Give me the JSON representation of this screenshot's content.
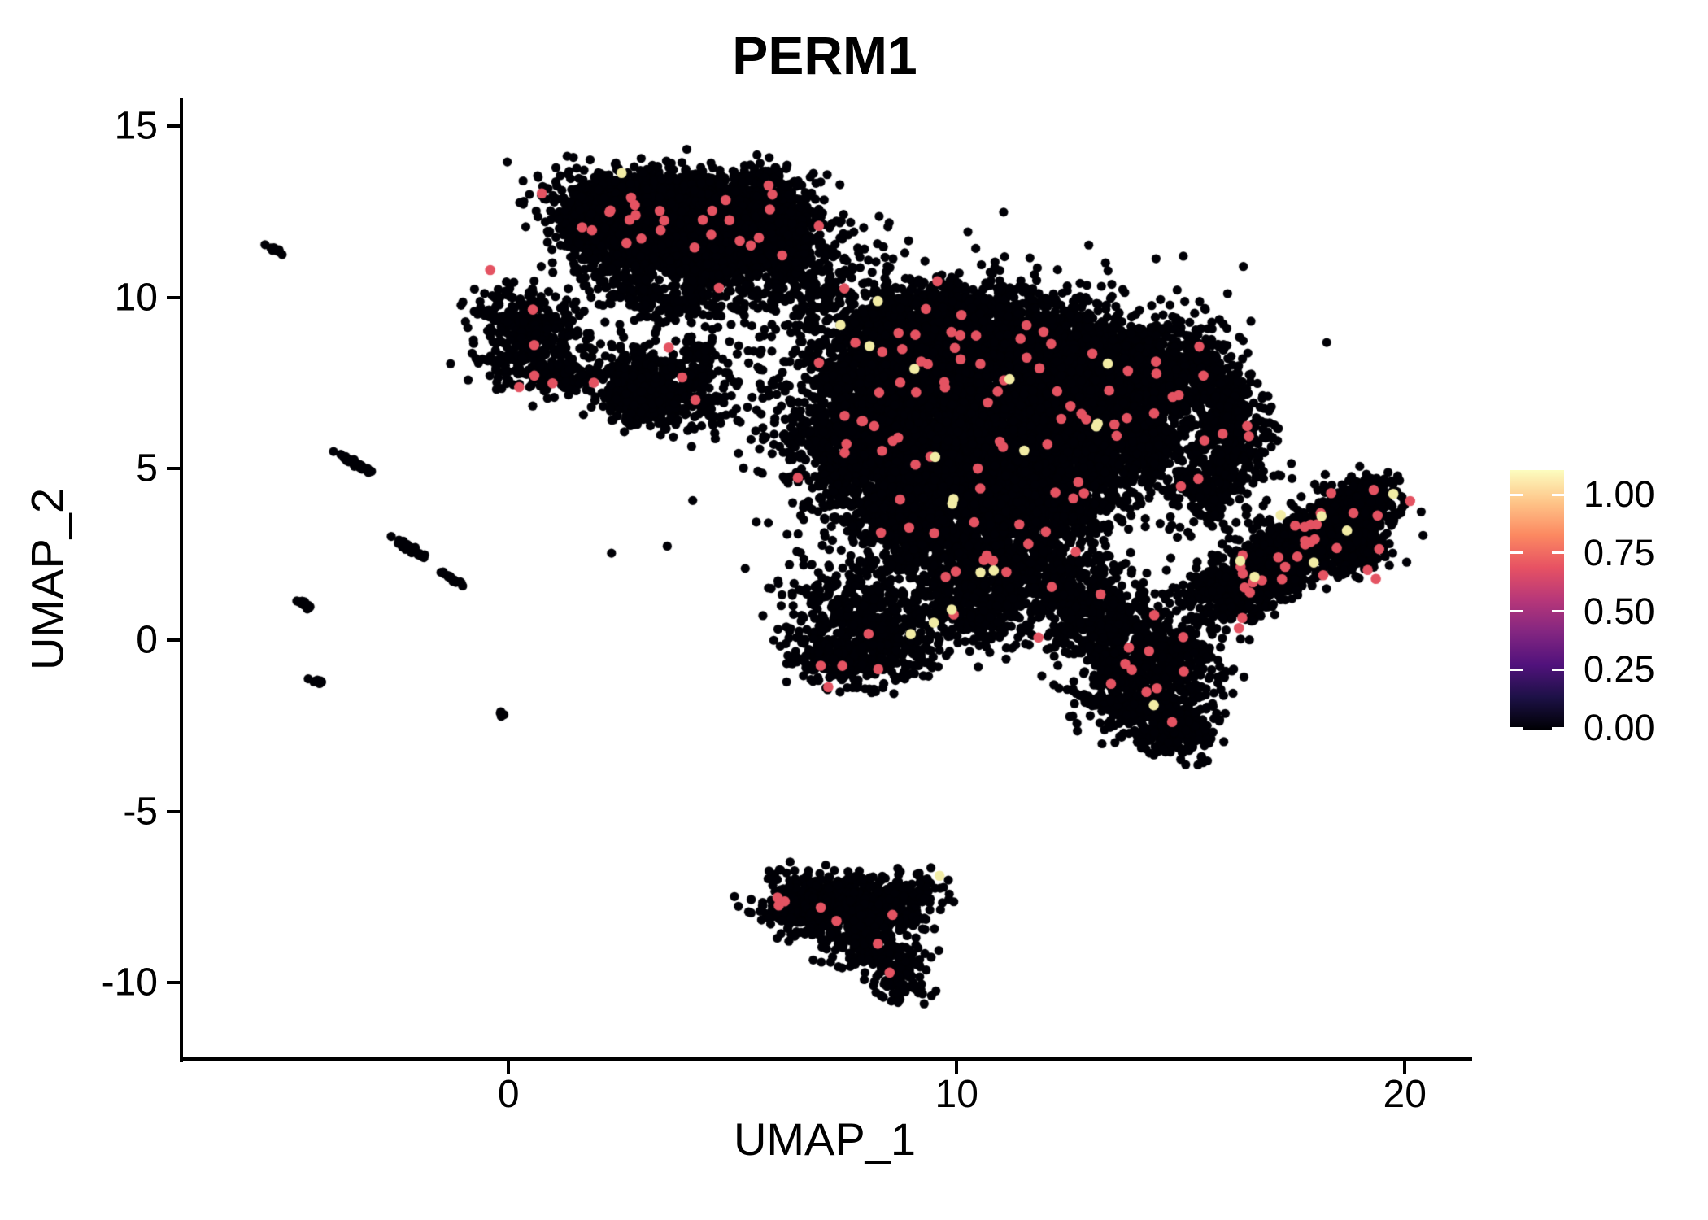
{
  "chart_data": {
    "type": "scatter",
    "title": "PERM1",
    "xlabel": "UMAP_1",
    "ylabel": "UMAP_2",
    "xlim": [
      -7.3,
      21.43
    ],
    "ylim": [
      -12.23,
      15.77
    ],
    "grid": false,
    "xticks": [
      {
        "v": 0,
        "label": "0"
      },
      {
        "v": 10,
        "label": "10"
      },
      {
        "v": 20,
        "label": "20"
      }
    ],
    "yticks": [
      {
        "v": 15,
        "label": "15"
      },
      {
        "v": 10,
        "label": "10"
      },
      {
        "v": 5,
        "label": "5"
      },
      {
        "v": 0,
        "label": "0"
      },
      {
        "v": -5,
        "label": "-5"
      },
      {
        "v": -10,
        "label": "-10"
      }
    ],
    "legend": {
      "position": "right",
      "ticks": [
        {
          "v": 1.0,
          "label": "1.00"
        },
        {
          "v": 0.75,
          "label": "0.75"
        },
        {
          "v": 0.5,
          "label": "0.50"
        },
        {
          "v": 0.25,
          "label": "0.25"
        },
        {
          "v": 0.0,
          "label": "0.00"
        }
      ],
      "gradient_bottom_to_top": [
        "#000004",
        "#1d1147",
        "#51127c",
        "#832681",
        "#b73779",
        "#e75263",
        "#fc8961",
        "#fec488",
        "#fcfdbf"
      ]
    },
    "point_colors": {
      "zero": "#000006",
      "mid_expression": "#e45362",
      "high_expression": "#f2eca5"
    },
    "point_radius": {
      "zero": 5.6,
      "expressing": 6.3
    },
    "clusters": [
      {
        "name": "top-blob",
        "frac_mid": 0.009,
        "frac_high": 0.0007,
        "blobs": [
          [
            3.0,
            12.9,
            1.0,
            0.45,
            -8,
            480
          ],
          [
            4.4,
            12.9,
            0.9,
            0.45,
            5,
            480
          ],
          [
            2.5,
            12.2,
            0.8,
            0.45,
            0,
            380
          ],
          [
            3.6,
            12.2,
            0.9,
            0.5,
            0,
            430
          ],
          [
            4.9,
            12.1,
            0.8,
            0.5,
            0,
            380
          ],
          [
            5.8,
            12.6,
            0.6,
            0.5,
            25,
            250
          ],
          [
            3.1,
            11.3,
            0.8,
            0.4,
            -5,
            250
          ],
          [
            4.5,
            11.2,
            0.7,
            0.4,
            0,
            210
          ],
          [
            5.5,
            11.3,
            0.5,
            0.4,
            15,
            150
          ],
          [
            2.0,
            12.0,
            0.45,
            0.6,
            0,
            150
          ],
          [
            2.9,
            10.3,
            0.5,
            0.5,
            -40,
            100
          ],
          [
            3.7,
            9.8,
            0.45,
            0.35,
            -20,
            65
          ],
          [
            6.3,
            11.6,
            0.4,
            0.5,
            0,
            100
          ],
          [
            6.6,
            10.3,
            0.45,
            0.6,
            0,
            75
          ],
          [
            4.3,
            10.4,
            0.5,
            0.35,
            0,
            90
          ]
        ]
      },
      {
        "name": "left-hook",
        "frac_mid": 0.022,
        "frac_high": 0.0,
        "blobs": [
          [
            0.1,
            9.5,
            0.5,
            0.45,
            20,
            130
          ],
          [
            0.9,
            9.1,
            0.45,
            0.35,
            0,
            100
          ],
          [
            0.3,
            8.1,
            0.55,
            0.45,
            0,
            130
          ],
          [
            1.2,
            7.9,
            0.4,
            0.35,
            0,
            95
          ]
        ]
      },
      {
        "name": "mid-small",
        "frac_mid": 0.005,
        "frac_high": 0.0,
        "blobs": [
          [
            2.9,
            7.7,
            0.55,
            0.45,
            -25,
            210
          ],
          [
            3.6,
            7.1,
            0.55,
            0.4,
            -25,
            210
          ],
          [
            2.7,
            6.9,
            0.4,
            0.35,
            0,
            110
          ],
          [
            4.1,
            7.9,
            0.35,
            0.35,
            0,
            65
          ],
          [
            4.3,
            8.4,
            0.2,
            0.25,
            0,
            28
          ]
        ]
      },
      {
        "name": "sparse-bridges",
        "frac_mid": 0.004,
        "frac_high": 0.0,
        "blobs": [
          [
            5.4,
            7.4,
            0.8,
            0.7,
            0,
            55
          ],
          [
            6.7,
            10.7,
            0.8,
            0.7,
            0,
            80
          ],
          [
            1.9,
            10.4,
            0.5,
            0.5,
            0,
            32
          ],
          [
            7.4,
            11.3,
            0.6,
            0.5,
            0,
            45
          ],
          [
            5.1,
            9.7,
            0.6,
            0.5,
            0,
            45
          ]
        ]
      },
      {
        "name": "main-blob",
        "frac_mid": 0.0075,
        "frac_high": 0.0009,
        "blobs": [
          [
            8.3,
            8.8,
            1.0,
            0.8,
            0,
            540
          ],
          [
            9.6,
            9.5,
            0.8,
            0.55,
            0,
            340
          ],
          [
            10.8,
            9.2,
            0.9,
            0.6,
            0,
            430
          ],
          [
            12.0,
            8.6,
            1.0,
            0.7,
            0,
            540
          ],
          [
            13.3,
            8.1,
            0.9,
            0.7,
            0,
            470
          ],
          [
            8.0,
            7.2,
            0.85,
            0.8,
            0,
            430
          ],
          [
            9.3,
            7.8,
            0.9,
            0.7,
            0,
            490
          ],
          [
            10.5,
            7.5,
            0.9,
            0.7,
            0,
            530
          ],
          [
            11.8,
            7.0,
            0.9,
            0.7,
            0,
            530
          ],
          [
            13.0,
            6.7,
            0.8,
            0.6,
            0,
            430
          ],
          [
            14.3,
            7.4,
            0.7,
            0.8,
            0,
            370
          ],
          [
            15.3,
            8.0,
            0.5,
            0.8,
            15,
            270
          ],
          [
            16.0,
            6.6,
            0.45,
            0.7,
            0,
            210
          ],
          [
            7.6,
            5.8,
            0.8,
            0.7,
            0,
            370
          ],
          [
            8.9,
            5.9,
            0.8,
            0.7,
            0,
            430
          ],
          [
            10.2,
            5.7,
            0.8,
            0.7,
            0,
            490
          ],
          [
            11.5,
            5.3,
            0.8,
            0.7,
            0,
            490
          ],
          [
            12.8,
            5.0,
            0.8,
            0.7,
            0,
            430
          ],
          [
            14.1,
            5.6,
            0.6,
            0.6,
            0,
            270
          ],
          [
            8.2,
            4.3,
            0.7,
            0.7,
            0,
            370
          ],
          [
            9.5,
            4.2,
            0.7,
            0.6,
            0,
            370
          ],
          [
            10.8,
            3.9,
            0.7,
            0.6,
            0,
            370
          ],
          [
            12.1,
            3.6,
            0.7,
            0.6,
            0,
            310
          ],
          [
            15.6,
            4.4,
            0.5,
            0.6,
            0,
            190
          ],
          [
            16.2,
            5.5,
            0.4,
            0.6,
            0,
            160
          ],
          [
            9.0,
            2.8,
            0.6,
            0.7,
            0,
            270
          ],
          [
            10.3,
            2.4,
            0.6,
            0.6,
            0,
            240
          ],
          [
            11.5,
            2.1,
            0.6,
            0.6,
            0,
            210
          ],
          [
            12.5,
            1.6,
            0.6,
            0.5,
            0,
            230
          ],
          [
            9.7,
            1.2,
            0.5,
            0.8,
            0,
            190
          ],
          [
            10.7,
            0.7,
            0.5,
            0.6,
            0,
            160
          ],
          [
            7.5,
            0.9,
            0.7,
            0.8,
            0,
            310
          ],
          [
            8.4,
            0.0,
            0.6,
            0.6,
            0,
            260
          ],
          [
            7.3,
            -0.6,
            0.5,
            0.4,
            0,
            160
          ],
          [
            13.5,
            0.4,
            0.9,
            0.7,
            -15,
            480
          ],
          [
            14.6,
            -0.6,
            0.7,
            0.6,
            0,
            370
          ],
          [
            13.9,
            -1.7,
            0.7,
            0.5,
            -20,
            310
          ],
          [
            14.8,
            -2.6,
            0.5,
            0.45,
            -35,
            200
          ],
          [
            11.0,
            6.5,
            2.8,
            2.2,
            0,
            450
          ]
        ]
      },
      {
        "name": "right-band",
        "frac_mid": 0.013,
        "frac_high": 0.0035,
        "blobs": [
          [
            15.9,
            1.5,
            0.5,
            0.35,
            38,
            210
          ],
          [
            16.8,
            2.1,
            0.6,
            0.4,
            38,
            300
          ],
          [
            17.7,
            2.8,
            0.6,
            0.45,
            38,
            340
          ],
          [
            18.5,
            3.4,
            0.55,
            0.45,
            38,
            340
          ],
          [
            19.1,
            4.0,
            0.45,
            0.4,
            38,
            260
          ],
          [
            18.9,
            2.7,
            0.4,
            0.4,
            0,
            170
          ],
          [
            17.2,
            1.7,
            0.45,
            0.3,
            38,
            130
          ],
          [
            16.4,
            1.0,
            0.35,
            0.25,
            38,
            65
          ]
        ]
      },
      {
        "name": "bottom-wedge",
        "frac_mid": 0.007,
        "frac_high": 0.0012,
        "blobs": [
          [
            6.6,
            -7.6,
            0.5,
            0.4,
            0,
            190
          ],
          [
            7.5,
            -7.5,
            0.6,
            0.35,
            -5,
            220
          ],
          [
            8.5,
            -7.8,
            0.6,
            0.4,
            -10,
            190
          ],
          [
            7.6,
            -8.4,
            0.6,
            0.4,
            -10,
            165
          ],
          [
            8.3,
            -9.1,
            0.5,
            0.4,
            -30,
            130
          ],
          [
            8.7,
            -9.9,
            0.35,
            0.35,
            0,
            90
          ],
          [
            9.2,
            -7.2,
            0.3,
            0.25,
            35,
            45
          ],
          [
            6.3,
            -8.1,
            0.3,
            0.3,
            0,
            34
          ]
        ]
      },
      {
        "name": "left-streaks",
        "frac_mid": 0.0,
        "frac_high": 0.0,
        "blobs": [
          [
            -5.2,
            11.4,
            0.12,
            0.03,
            -35,
            16
          ],
          [
            -3.4,
            5.15,
            0.22,
            0.035,
            -38,
            30
          ],
          [
            -2.15,
            2.65,
            0.22,
            0.035,
            -38,
            30
          ],
          [
            -1.25,
            1.8,
            0.14,
            0.035,
            -38,
            18
          ],
          [
            -4.55,
            1.05,
            0.12,
            0.035,
            -35,
            14
          ],
          [
            -4.3,
            -1.2,
            0.08,
            0.03,
            -35,
            10
          ],
          [
            -0.15,
            -2.15,
            0.04,
            0.03,
            0,
            6
          ]
        ]
      }
    ]
  }
}
